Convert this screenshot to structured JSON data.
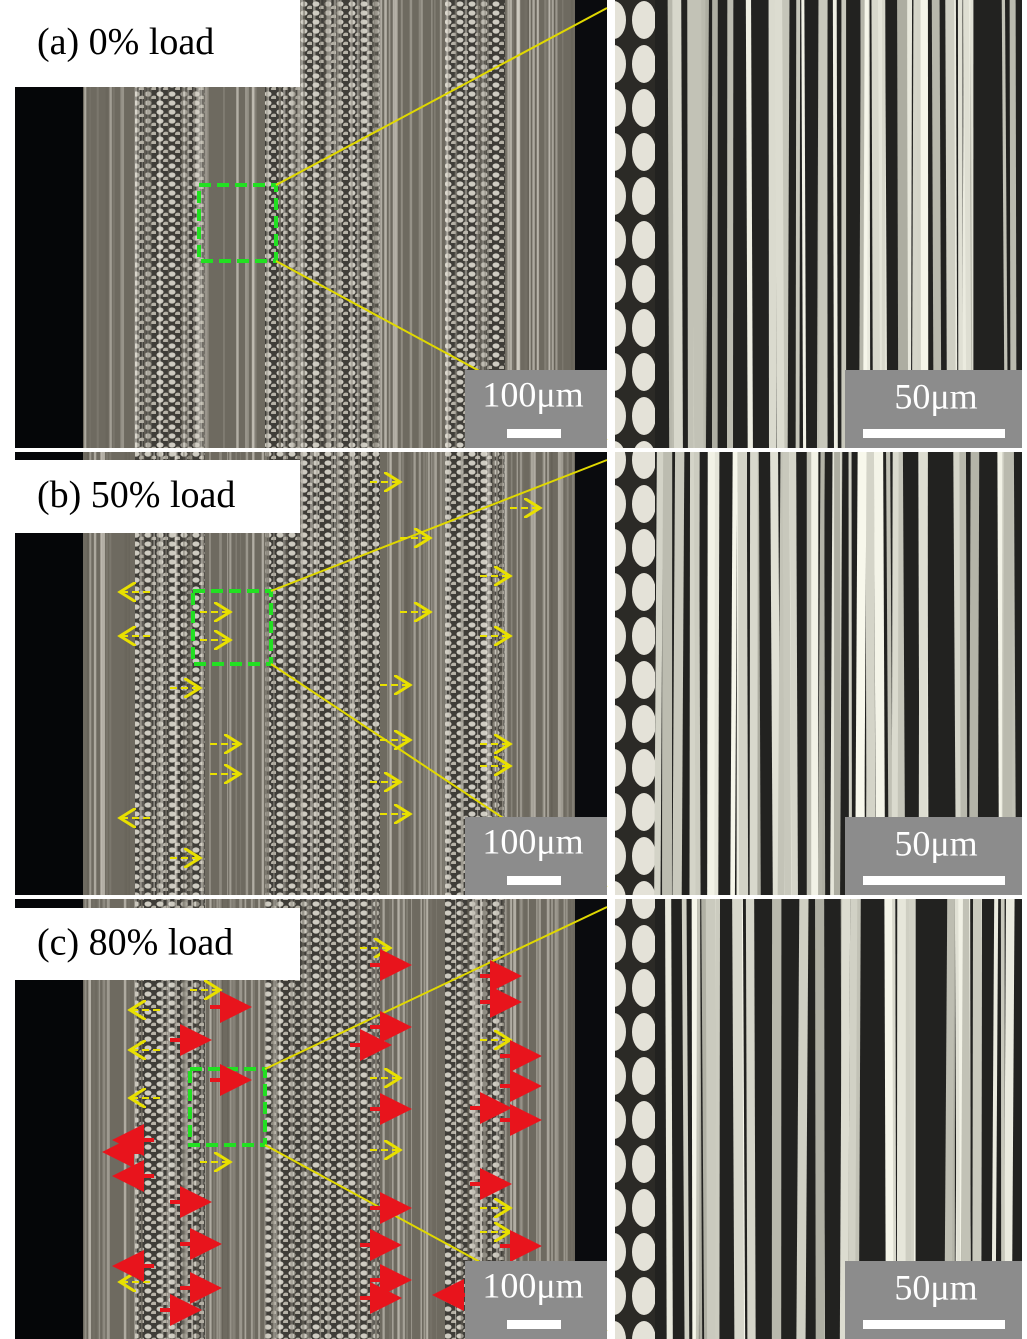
{
  "panels": [
    {
      "label": "(a) 0% load",
      "left_scale": "100μm",
      "right_scale": "50μm"
    },
    {
      "label": "(b) 50% load",
      "left_scale": "100μm",
      "right_scale": "50μm"
    },
    {
      "label": "(c) 80% load",
      "left_scale": "100μm",
      "right_scale": "50μm"
    }
  ]
}
